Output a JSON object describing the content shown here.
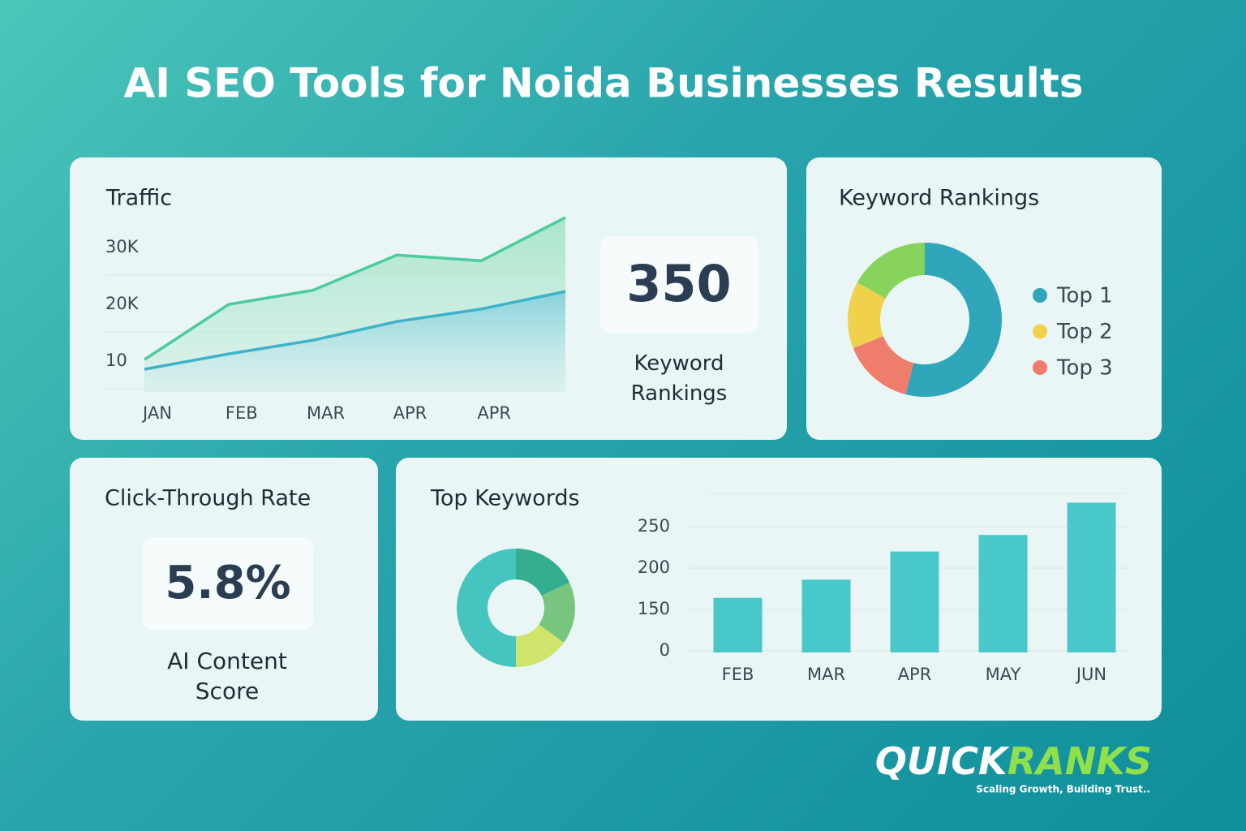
{
  "title": "AI SEO Tools for Noida Businesses Results",
  "chart_data": [
    {
      "type": "area",
      "title": "Traffic",
      "categories": [
        "JAN",
        "FEB",
        "MAR",
        "APR",
        "APR",
        null
      ],
      "series": [
        {
          "color": "#4ccaa0",
          "values": [
            11.7,
            21.4,
            23.9,
            30.1,
            29.1,
            36.7
          ]
        },
        {
          "color": "#3eb2c8",
          "values": [
            10,
            12.7,
            15.1,
            18.4,
            20.6,
            23.7
          ]
        }
      ],
      "ylim": [
        6,
        37
      ],
      "yticks": [
        10,
        {
          "value": 20,
          "label": "20K"
        },
        {
          "value": 30,
          "label": "30K"
        }
      ],
      "grid": true
    },
    {
      "type": "donut",
      "title": "Keyword Rankings",
      "values": [
        54,
        15,
        14,
        17
      ],
      "colors": [
        "#2fa6b9",
        "#ef7d6c",
        "#f0d14c",
        "#88d35c"
      ],
      "legend": [
        {
          "label": "Top 1",
          "color": "#2fa6b9"
        },
        {
          "label": "Top 2",
          "color": "#f0d14c"
        },
        {
          "label": "Top 3",
          "color": "#ef7d6c"
        }
      ]
    },
    {
      "type": "donut",
      "title": "Top Keywords",
      "values": [
        18,
        17,
        15,
        50
      ],
      "colors": [
        "#35ad8f",
        "#78c67e",
        "#d0e36b",
        "#46c4bf"
      ]
    },
    {
      "type": "bar",
      "categories": [
        "FEB",
        "MAR",
        "APR",
        "MAY",
        "JUN"
      ],
      "values": [
        164,
        186,
        220,
        240,
        279
      ],
      "color": "#48c8ca",
      "ylim": [
        0,
        290
      ],
      "yticks": [
        0,
        150,
        200,
        250
      ],
      "grid": true
    }
  ],
  "cards": [
    {
      "value": "350",
      "label": "Keyword Rankings"
    },
    {
      "title": "Click-Through Rate",
      "value": "5.8%",
      "label": "AI Content Score"
    }
  ],
  "logo": {
    "first": "QUICK",
    "second": "RANKS",
    "slogan": "Scaling Growth, Building Trust.."
  }
}
